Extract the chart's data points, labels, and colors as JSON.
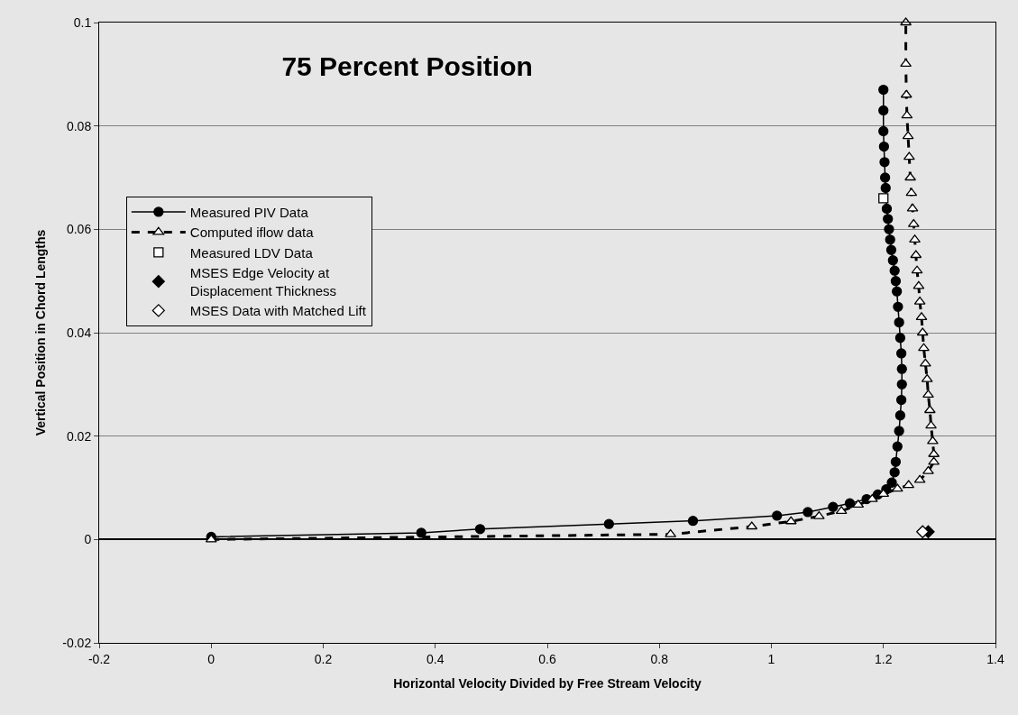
{
  "chart_data": {
    "type": "line",
    "title": "75 Percent Position",
    "xlabel": "Horizontal Velocity Divided by Free Stream Velocity",
    "ylabel": "Vertical Position in Chord Lengths",
    "xlim": [
      -0.2,
      1.4
    ],
    "ylim": [
      -0.02,
      0.1
    ],
    "xticks": [
      -0.2,
      0,
      0.2,
      0.4,
      0.6,
      0.8,
      1,
      1.2,
      1.4
    ],
    "yticks": [
      -0.02,
      0,
      0.02,
      0.04,
      0.06,
      0.08,
      0.1
    ],
    "grid": "y",
    "legend": "left",
    "series": [
      {
        "name": "Measured PIV Data",
        "color": "#000000",
        "marker": "circle",
        "line_style": "solid",
        "x": [
          0,
          0.375,
          0.48,
          0.71,
          0.86,
          1.01,
          1.065,
          1.11,
          1.14,
          1.17,
          1.19,
          1.205,
          1.215,
          1.22,
          1.222,
          1.225,
          1.228,
          1.23,
          1.232,
          1.233,
          1.233,
          1.232,
          1.23,
          1.228,
          1.226,
          1.224,
          1.222,
          1.22,
          1.217,
          1.214,
          1.212,
          1.21,
          1.208,
          1.206,
          1.204,
          1.203,
          1.202,
          1.201,
          1.2,
          1.2,
          1.2
        ],
        "values": [
          0.0005,
          0.0013,
          0.002,
          0.003,
          0.0036,
          0.0046,
          0.0053,
          0.0063,
          0.007,
          0.0078,
          0.0087,
          0.0097,
          0.011,
          0.013,
          0.015,
          0.018,
          0.021,
          0.024,
          0.027,
          0.03,
          0.033,
          0.036,
          0.039,
          0.042,
          0.045,
          0.048,
          0.05,
          0.052,
          0.054,
          0.056,
          0.058,
          0.06,
          0.062,
          0.064,
          0.068,
          0.07,
          0.073,
          0.076,
          0.079,
          0.083,
          0.087
        ]
      },
      {
        "name": "Computed iflow data",
        "color": "#ffffff",
        "marker": "triangle",
        "line_style": "dashed",
        "x": [
          0,
          0.82,
          0.965,
          1.035,
          1.085,
          1.125,
          1.155,
          1.18,
          1.2,
          1.225,
          1.245,
          1.265,
          1.28,
          1.29,
          1.29,
          1.288,
          1.285,
          1.283,
          1.28,
          1.278,
          1.275,
          1.272,
          1.27,
          1.268,
          1.265,
          1.263,
          1.26,
          1.258,
          1.256,
          1.254,
          1.252,
          1.25,
          1.248,
          1.246,
          1.244,
          1.242,
          1.241,
          1.24,
          1.24
        ],
        "values": [
          0,
          0.001,
          0.0025,
          0.0035,
          0.0045,
          0.0055,
          0.0067,
          0.0078,
          0.0088,
          0.0098,
          0.0105,
          0.0115,
          0.0132,
          0.015,
          0.0165,
          0.019,
          0.022,
          0.025,
          0.028,
          0.031,
          0.034,
          0.037,
          0.04,
          0.043,
          0.046,
          0.049,
          0.052,
          0.055,
          0.058,
          0.061,
          0.064,
          0.067,
          0.07,
          0.074,
          0.078,
          0.082,
          0.086,
          0.092,
          0.1
        ]
      },
      {
        "name": "Measured LDV Data",
        "type": "scatter",
        "color": "#ffffff",
        "marker": "square",
        "x": [
          1.2
        ],
        "values": [
          0.066
        ]
      },
      {
        "name": "MSES Edge Velocity at\nDisplacement Thickness",
        "type": "scatter",
        "color": "#000000",
        "marker": "diamond",
        "x": [
          1.28
        ],
        "values": [
          0.0015
        ]
      },
      {
        "name": "MSES Data with Matched Lift",
        "type": "scatter",
        "color": "#ffffff",
        "marker": "diamond",
        "x": [
          1.27
        ],
        "values": [
          0.0015
        ]
      }
    ]
  }
}
